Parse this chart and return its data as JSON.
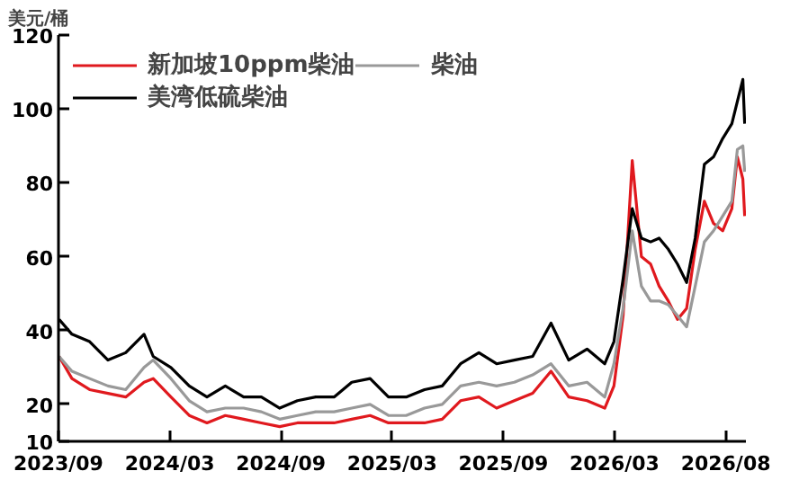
{
  "chart_data": {
    "type": "line",
    "ylabel": "美元/桶",
    "x": [
      "2023-09-05",
      "2023-09-26",
      "2023-10-25",
      "2023-11-24",
      "2023-12-23",
      "2024-01-22",
      "2024-02-06",
      "2024-03-06",
      "2024-04-05",
      "2024-05-04",
      "2024-06-03",
      "2024-07-03",
      "2024-08-01",
      "2024-08-31",
      "2024-09-29",
      "2024-10-29",
      "2024-11-28",
      "2024-12-27",
      "2025-01-26",
      "2025-02-25",
      "2025-03-26",
      "2025-04-25",
      "2025-05-24",
      "2025-06-23",
      "2025-07-23",
      "2025-08-21",
      "2025-09-19",
      "2025-10-19",
      "2025-11-18",
      "2025-12-17",
      "2026-01-16",
      "2026-02-14",
      "2026-03-01",
      "2026-03-16",
      "2026-03-31",
      "2026-04-15",
      "2026-04-30",
      "2026-05-14",
      "2026-05-29",
      "2026-06-13",
      "2026-06-28",
      "2026-07-12",
      "2026-07-27",
      "2026-08-11",
      "2026-08-26",
      "2026-09-10",
      "2026-09-19",
      "2026-09-28",
      "2026-10-01"
    ],
    "series": [
      {
        "name": "新加坡10ppm柴油",
        "color": "#e0191e",
        "values": [
          33,
          27,
          24,
          23,
          22,
          26,
          27,
          22,
          17,
          15,
          17,
          16,
          15,
          14,
          15,
          15,
          15,
          16,
          17,
          15,
          15,
          15,
          16,
          21,
          22,
          19,
          21,
          23,
          29,
          22,
          21,
          19,
          25,
          44,
          86,
          60,
          58,
          52,
          48,
          43,
          46,
          62,
          75,
          69,
          67,
          73,
          87,
          81,
          71
        ]
      },
      {
        "name": "柴油",
        "color": "#999999",
        "values": [
          33,
          29,
          27,
          25,
          24,
          30,
          32,
          27,
          21,
          18,
          19,
          19,
          18,
          16,
          17,
          18,
          18,
          19,
          20,
          17,
          17,
          19,
          20,
          25,
          26,
          25,
          26,
          28,
          31,
          25,
          26,
          22,
          31,
          46,
          67,
          52,
          48,
          48,
          47,
          44,
          41,
          52,
          64,
          67,
          71,
          75,
          89,
          90,
          83
        ]
      },
      {
        "name": "美湾低硫柴油",
        "color": "#000000",
        "values": [
          43,
          39,
          37,
          32,
          34,
          39,
          33,
          30,
          25,
          22,
          25,
          22,
          22,
          19,
          21,
          22,
          22,
          26,
          27,
          22,
          22,
          24,
          25,
          31,
          34,
          31,
          32,
          33,
          42,
          32,
          35,
          31,
          37,
          54,
          73,
          65,
          64,
          65,
          62,
          58,
          53,
          65,
          85,
          87,
          92,
          96,
          102,
          108,
          96
        ]
      }
    ],
    "xlim": [
      "2023-09-04",
      "2026-10-03"
    ],
    "xticks": [
      {
        "value": "2023-09-04",
        "label": "2023/09"
      },
      {
        "value": "2024-03-04",
        "label": "2024/03"
      },
      {
        "value": "2024-09-02",
        "label": "2024/09"
      },
      {
        "value": "2025-03-03",
        "label": "2025/03"
      },
      {
        "value": "2025-09-01",
        "label": "2025/09"
      },
      {
        "value": "2026-03-02",
        "label": "2026/03"
      },
      {
        "value": "2026-08-31",
        "label": "2026/08"
      }
    ],
    "ylim": [
      10,
      120
    ],
    "yticks": [
      10,
      20,
      40,
      60,
      80,
      100,
      120
    ],
    "grid": false,
    "legend": "top",
    "line_style": "solid",
    "marker": "none"
  }
}
